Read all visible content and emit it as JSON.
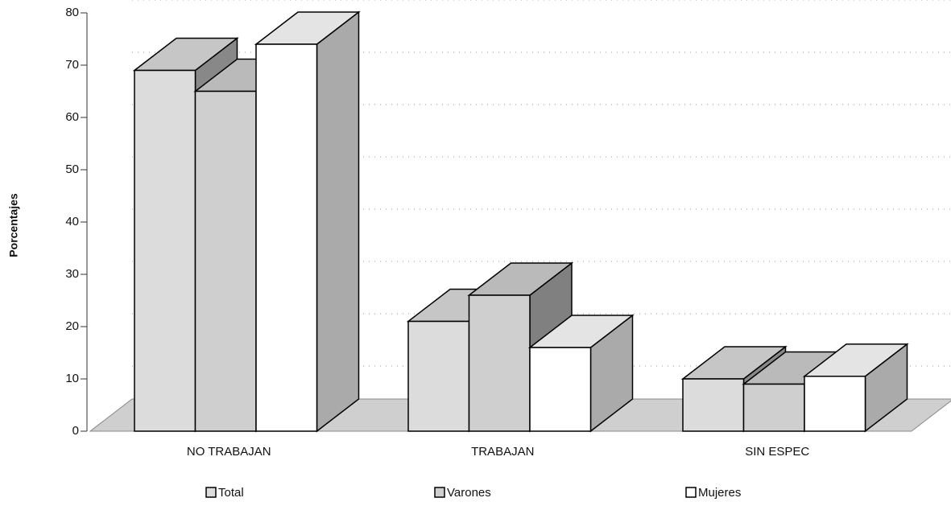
{
  "chart_data": {
    "type": "bar3d",
    "y_label": "Porcentajes",
    "categories": [
      "NO TRABAJAN",
      "TRABAJAN",
      "SIN ESPEC"
    ],
    "series": [
      {
        "name": "Total",
        "color": "#dcdcdc",
        "values": [
          69,
          21,
          10
        ]
      },
      {
        "name": "Varones",
        "color": "#cfcfcf",
        "values": [
          65,
          26,
          9
        ]
      },
      {
        "name": "Mujeres",
        "color": "#ffffff",
        "values": [
          74,
          16,
          10.5
        ]
      }
    ],
    "ylim": [
      0,
      80
    ],
    "yticks": [
      0,
      10,
      20,
      30,
      40,
      50,
      60,
      70,
      80
    ],
    "grid": true
  }
}
